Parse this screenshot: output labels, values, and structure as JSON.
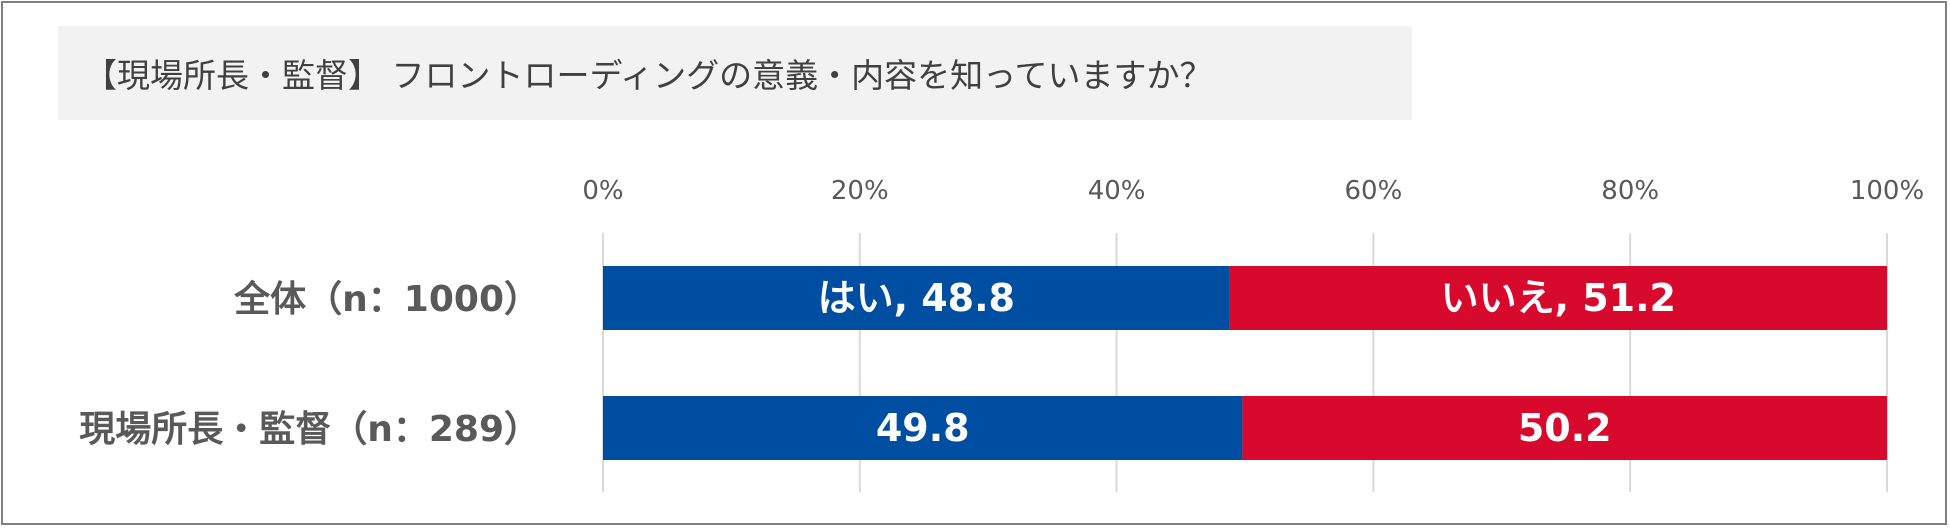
{
  "chart_data": {
    "type": "bar",
    "orientation": "horizontal",
    "stacked": true,
    "percent": true,
    "title": "【現場所長・監督】 フロントローディングの意義・内容を知っていますか？",
    "categories": [
      "全体（n：1000）",
      "現場所長・監督（n：289）"
    ],
    "xlim": [
      0,
      100
    ],
    "x_ticks": [
      "0%",
      "20%",
      "40%",
      "60%",
      "80%",
      "100%"
    ],
    "grid": true,
    "legend": "none",
    "series": [
      {
        "name": "はい",
        "color": "#004ea2",
        "values": [
          48.8,
          49.8
        ],
        "labels": [
          "はい, 48.8",
          "49.8"
        ]
      },
      {
        "name": "いいえ",
        "color": "#d70a2d",
        "values": [
          51.2,
          50.2
        ],
        "labels": [
          "いいえ, 51.2",
          "50.2"
        ]
      }
    ]
  }
}
